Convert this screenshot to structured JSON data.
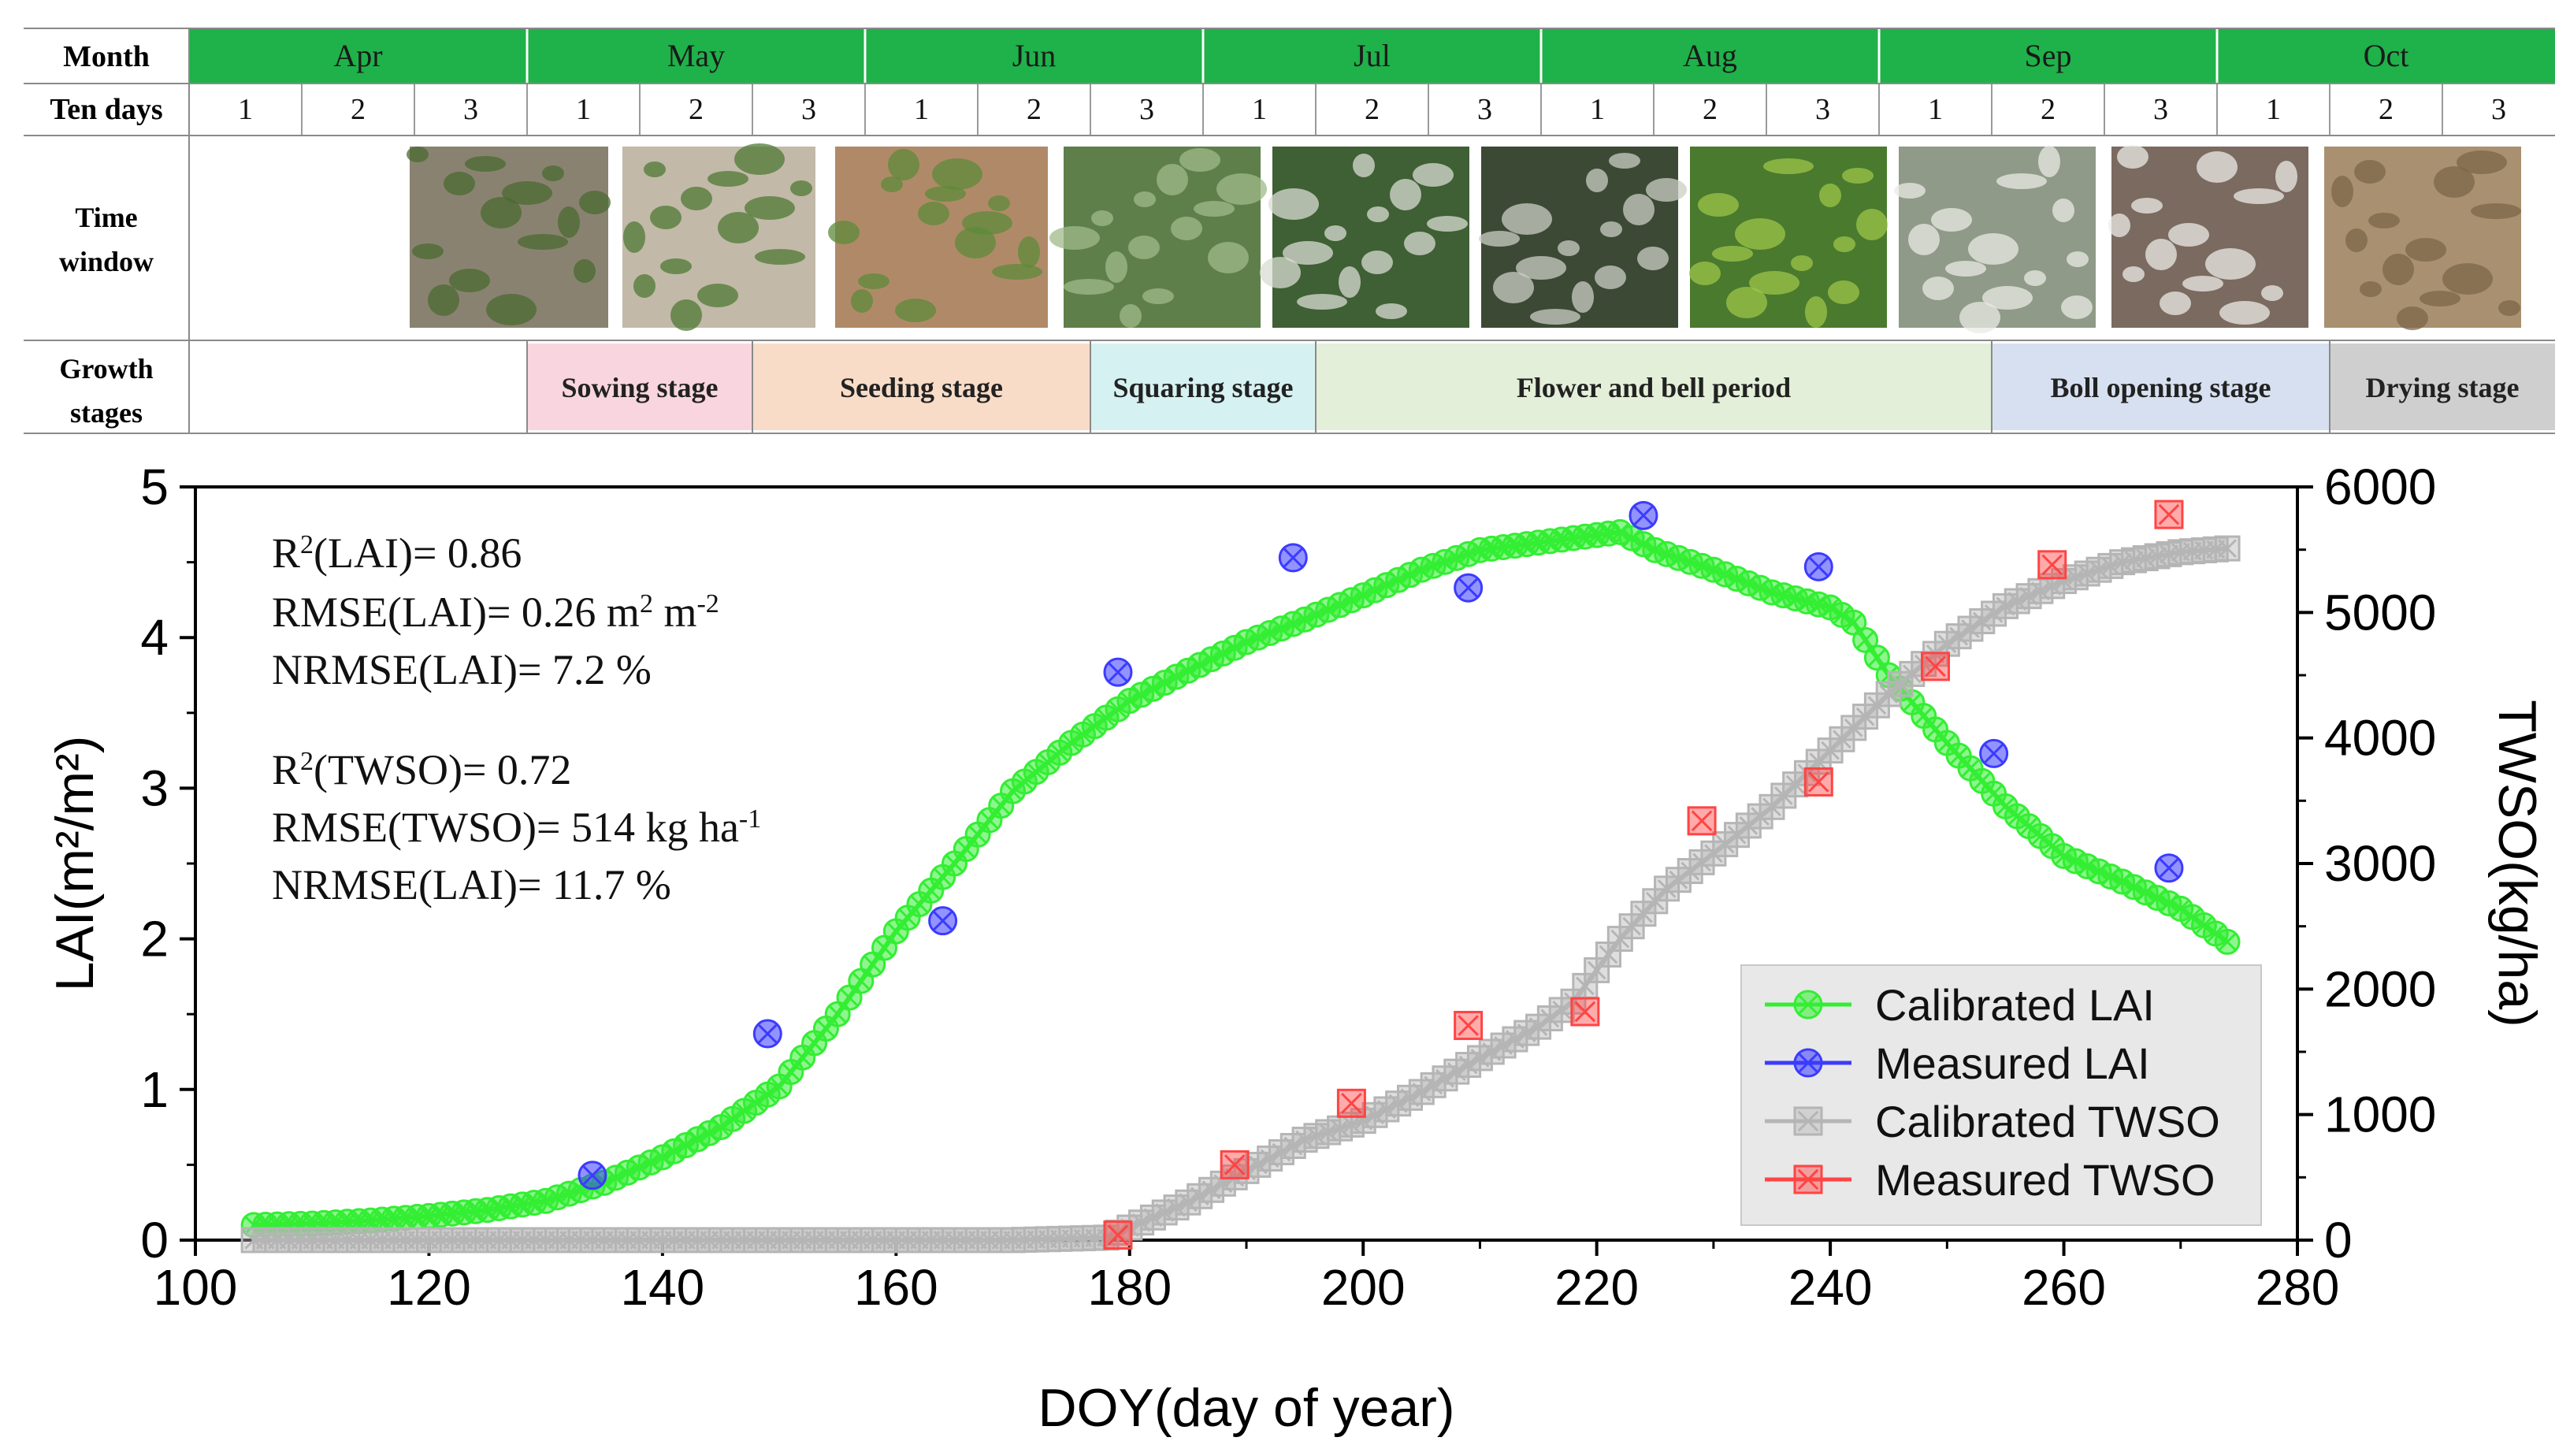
{
  "timeline": {
    "row_labels": {
      "month": "Month",
      "ten_days": "Ten days",
      "time_window": [
        "Time",
        "window"
      ],
      "growth_stages": [
        "Growth",
        "stages"
      ]
    },
    "months": [
      "Apr",
      "May",
      "Jun",
      "Jul",
      "Aug",
      "Sep",
      "Oct"
    ],
    "ten_days": [
      "1",
      "2",
      "3",
      "1",
      "2",
      "3",
      "1",
      "2",
      "3",
      "1",
      "2",
      "3",
      "1",
      "2",
      "3",
      "1",
      "2",
      "3",
      "1",
      "2",
      "3"
    ],
    "month_color": "#1fb14a",
    "photo_colors": [
      {
        "base": "#8a8270",
        "accent": "#4a6a32"
      },
      {
        "base": "#c2b9a8",
        "accent": "#4f7a35"
      },
      {
        "base": "#b08a68",
        "accent": "#5e8a3a"
      },
      {
        "base": "#5e7f4a",
        "accent": "#9fb98a"
      },
      {
        "base": "#3f5f34",
        "accent": "#d8dcd2"
      },
      {
        "base": "#3c4a35",
        "accent": "#c9cfc4"
      },
      {
        "base": "#4a7a2e",
        "accent": "#9cc64a"
      },
      {
        "base": "#8f9a88",
        "accent": "#e9eae4"
      },
      {
        "base": "#7a6a60",
        "accent": "#ecebe6"
      },
      {
        "base": "#a89070",
        "accent": "#7d6648"
      }
    ],
    "stages": [
      {
        "label": "Sowing stage",
        "color": "#f9d6df"
      },
      {
        "label": "Seeding stage",
        "color": "#f8dcc8"
      },
      {
        "label": "Squaring stage",
        "color": "#d6f1f1"
      },
      {
        "label": "Flower and bell period",
        "color": "#e3efd8"
      },
      {
        "label": "Boll opening stage",
        "color": "#d7e0f0"
      },
      {
        "label": "Drying stage",
        "color": "#cfcfcf"
      }
    ]
  },
  "chart_data": {
    "type": "line",
    "title": "",
    "xlabel": "DOY(day of year)",
    "ylabel_left": "LAI(m²/m²)",
    "ylabel_right": "TWSO(kg/ha)",
    "xlim": [
      100,
      280
    ],
    "ylim_left": [
      0,
      5
    ],
    "ylim_right": [
      0,
      6000
    ],
    "x_ticks": [
      100,
      120,
      140,
      160,
      180,
      200,
      220,
      240,
      260,
      280
    ],
    "y_ticks_left": [
      0,
      1,
      2,
      3,
      4,
      5
    ],
    "y_ticks_right": [
      0,
      1000,
      2000,
      3000,
      4000,
      5000,
      6000
    ],
    "grid": false,
    "legend_position": "bottom-right",
    "series": [
      {
        "name": "Calibrated LAI",
        "axis": "left",
        "color": "#33ee33",
        "marker": "circle-x",
        "x": [
          105,
          110,
          115,
          120,
          125,
          130,
          135,
          140,
          145,
          150,
          155,
          160,
          165,
          170,
          175,
          180,
          185,
          190,
          195,
          200,
          205,
          210,
          215,
          220,
          222,
          225,
          230,
          235,
          240,
          242,
          245,
          250,
          255,
          260,
          265,
          270,
          274
        ],
        "values": [
          0.1,
          0.11,
          0.13,
          0.16,
          0.2,
          0.26,
          0.38,
          0.55,
          0.75,
          1.02,
          1.5,
          2.05,
          2.5,
          2.98,
          3.3,
          3.58,
          3.78,
          3.97,
          4.12,
          4.28,
          4.45,
          4.58,
          4.63,
          4.68,
          4.7,
          4.58,
          4.45,
          4.3,
          4.2,
          4.1,
          3.75,
          3.3,
          2.88,
          2.55,
          2.38,
          2.2,
          1.98
        ]
      },
      {
        "name": "Measured  LAI",
        "axis": "left",
        "color": "#3b3bff",
        "marker": "circle-x",
        "x": [
          134,
          149,
          164,
          179,
          194,
          209,
          224,
          239,
          254,
          269
        ],
        "values": [
          0.43,
          1.37,
          2.12,
          3.77,
          4.53,
          4.33,
          4.81,
          4.47,
          3.23,
          2.47
        ]
      },
      {
        "name": "Calibrated TWSO",
        "axis": "right",
        "color": "#b5b5b5",
        "marker": "square-x",
        "x": [
          105,
          120,
          140,
          160,
          170,
          178,
          180,
          185,
          190,
          195,
          200,
          205,
          210,
          215,
          218,
          222,
          226,
          230,
          235,
          240,
          245,
          250,
          255,
          260,
          265,
          270,
          274
        ],
        "values": [
          0,
          0,
          0,
          0,
          0,
          20,
          100,
          300,
          550,
          800,
          950,
          1180,
          1450,
          1700,
          1900,
          2400,
          2800,
          3080,
          3450,
          3900,
          4350,
          4750,
          5050,
          5250,
          5400,
          5480,
          5510
        ]
      },
      {
        "name": "Measured  TWSO",
        "axis": "right",
        "color": "#ff4444",
        "marker": "square-x",
        "x": [
          179,
          189,
          199,
          209,
          219,
          229,
          239,
          249,
          259,
          269
        ],
        "values": [
          40,
          600,
          1090,
          1710,
          1820,
          3340,
          3650,
          4570,
          5380,
          5780
        ]
      }
    ],
    "annotations": [
      {
        "parts": [
          [
            "R",
            ""
          ],
          [
            "2",
            "sup"
          ],
          [
            "(LAI)= 0.86",
            ""
          ]
        ]
      },
      {
        "parts": [
          [
            "RMSE(LAI)= 0.26 m",
            ""
          ],
          [
            "2",
            "sup"
          ],
          [
            " m",
            ""
          ],
          [
            "-2",
            "sup"
          ]
        ]
      },
      {
        "parts": [
          [
            "NRMSE(LAI)= 7.2 %",
            ""
          ]
        ]
      },
      {
        "parts": [
          [
            "R",
            ""
          ],
          [
            "2",
            "sup"
          ],
          [
            "(TWSO)= 0.72",
            ""
          ]
        ]
      },
      {
        "parts": [
          [
            "RMSE(TWSO)= 514 kg ha",
            ""
          ],
          [
            "-1",
            "sup"
          ]
        ]
      },
      {
        "parts": [
          [
            "NRMSE(LAI)= 11.7 %",
            ""
          ]
        ]
      }
    ]
  }
}
